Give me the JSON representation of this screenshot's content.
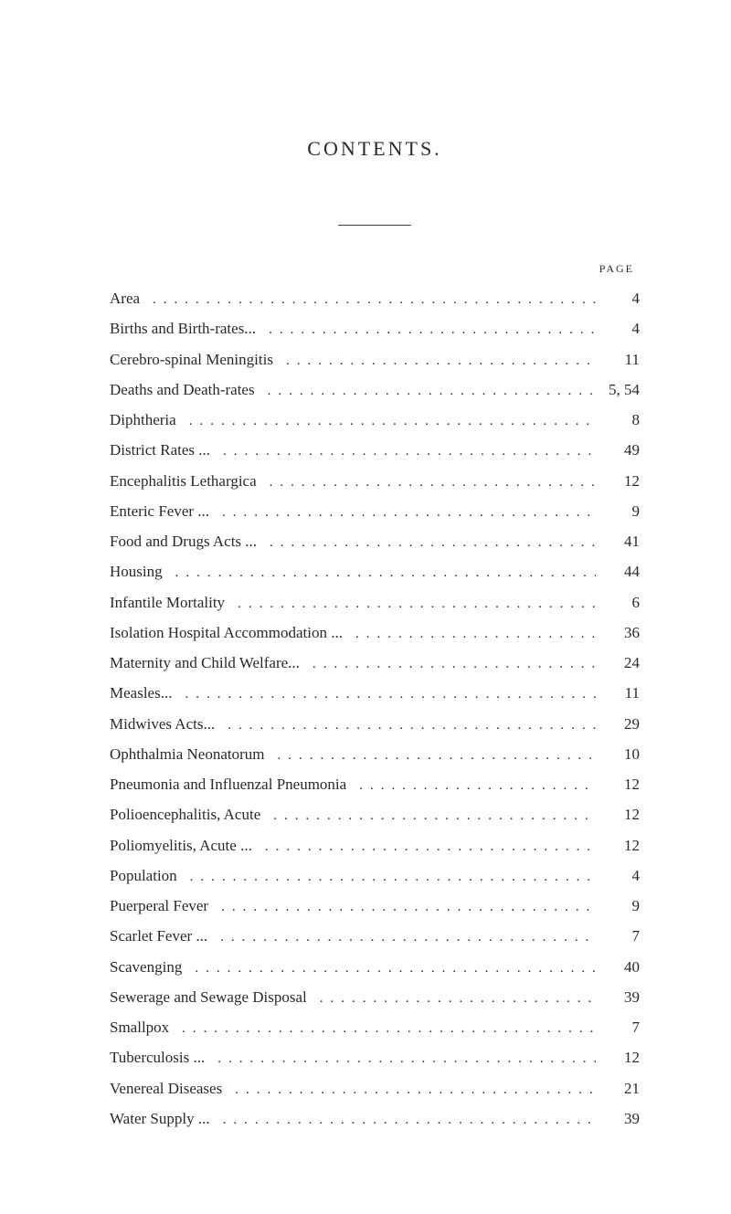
{
  "title": "CONTENTS.",
  "pageHeader": "PAGE",
  "colors": {
    "background": "#ffffff",
    "text": "#2a2a2a",
    "divider": "#444444"
  },
  "typography": {
    "titleFontSize": 22,
    "titleLetterSpacing": 3,
    "entryFontSize": 17,
    "lineHeight": 1.95,
    "fontFamily": "Georgia, Times New Roman, serif"
  },
  "entries": [
    {
      "label": "Area",
      "page": "4"
    },
    {
      "label": "Births and Birth-rates...",
      "page": "4"
    },
    {
      "label": "Cerebro-spinal Meningitis",
      "page": "11"
    },
    {
      "label": "Deaths and Death-rates",
      "page": "5, 54"
    },
    {
      "label": "Diphtheria",
      "page": "8"
    },
    {
      "label": "District Rates ...",
      "page": "49"
    },
    {
      "label": "Encephalitis Lethargica",
      "page": "12"
    },
    {
      "label": "Enteric Fever ...",
      "page": "9"
    },
    {
      "label": "Food and Drugs Acts ...",
      "page": "41"
    },
    {
      "label": "Housing",
      "page": "44"
    },
    {
      "label": "Infantile Mortality",
      "page": "6"
    },
    {
      "label": "Isolation Hospital Accommodation ...",
      "page": "36"
    },
    {
      "label": "Maternity and Child Welfare...",
      "page": "24"
    },
    {
      "label": "Measles...",
      "page": "11"
    },
    {
      "label": "Midwives Acts...",
      "page": "29"
    },
    {
      "label": "Ophthalmia Neonatorum",
      "page": "10"
    },
    {
      "label": "Pneumonia and Influenzal Pneumonia",
      "page": "12"
    },
    {
      "label": "Polioencephalitis, Acute",
      "page": "12"
    },
    {
      "label": "Poliomyelitis, Acute ...",
      "page": "12"
    },
    {
      "label": "Population",
      "page": "4"
    },
    {
      "label": "Puerperal Fever",
      "page": "9"
    },
    {
      "label": "Scarlet Fever ...",
      "page": "7"
    },
    {
      "label": "Scavenging",
      "page": "40"
    },
    {
      "label": "Sewerage and Sewage Disposal",
      "page": "39"
    },
    {
      "label": "Smallpox",
      "page": "7"
    },
    {
      "label": "Tuberculosis ...",
      "page": "12"
    },
    {
      "label": "Venereal Diseases",
      "page": "21"
    },
    {
      "label": "Water Supply ...",
      "page": "39"
    }
  ]
}
